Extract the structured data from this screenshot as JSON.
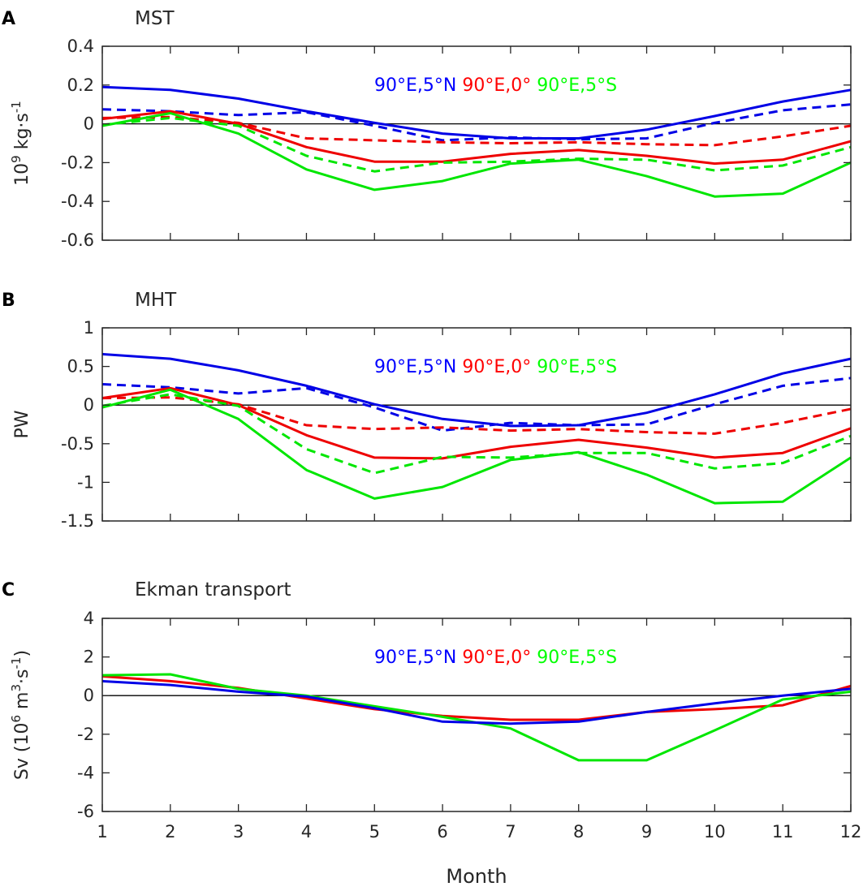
{
  "chart_data": [
    {
      "type": "line",
      "panel_label": "A",
      "title": "MST",
      "ylabel": {
        "base": "10",
        "exp": "9",
        "unit": " kg·s",
        "unit_exp": "-1"
      },
      "xlabel": "",
      "x": [
        1,
        2,
        3,
        4,
        5,
        6,
        7,
        8,
        9,
        10,
        11,
        12
      ],
      "xlim": [
        1,
        12
      ],
      "ylim": [
        -0.6,
        0.4
      ],
      "yticks": [
        -0.6,
        -0.4,
        -0.2,
        0,
        0.2,
        0.4
      ],
      "ytick_labels": [
        "-0.6",
        "-0.4",
        "-0.2",
        "0",
        "0.2",
        "0.4"
      ],
      "legend": [
        {
          "label": "90°E,5°N",
          "color": "#0000ff"
        },
        {
          "label": "90°E,0°",
          "color": "#ff0000"
        },
        {
          "label": "90°E,5°S",
          "color": "#00ff00"
        }
      ],
      "series": [
        {
          "name": "90°E,5°N",
          "style": "solid",
          "color": "#0000e6",
          "values": [
            0.19,
            0.175,
            0.13,
            0.065,
            0.005,
            -0.05,
            -0.075,
            -0.075,
            -0.03,
            0.04,
            0.115,
            0.175
          ]
        },
        {
          "name": "90°E,5°N",
          "style": "dashed",
          "color": "#0000e6",
          "values": [
            0.075,
            0.065,
            0.045,
            0.06,
            -0.01,
            -0.085,
            -0.07,
            -0.08,
            -0.075,
            0.005,
            0.07,
            0.1
          ]
        },
        {
          "name": "90°E,0°",
          "style": "solid",
          "color": "#ee0000",
          "values": [
            0.025,
            0.065,
            0.0,
            -0.12,
            -0.195,
            -0.195,
            -0.155,
            -0.135,
            -0.165,
            -0.205,
            -0.185,
            -0.09
          ]
        },
        {
          "name": "90°E,0°",
          "style": "dashed",
          "color": "#ee0000",
          "values": [
            0.03,
            0.035,
            0.005,
            -0.075,
            -0.085,
            -0.095,
            -0.1,
            -0.095,
            -0.105,
            -0.11,
            -0.065,
            -0.01
          ]
        },
        {
          "name": "90°E,5°S",
          "style": "solid",
          "color": "#00e600",
          "values": [
            -0.01,
            0.055,
            -0.05,
            -0.235,
            -0.34,
            -0.295,
            -0.205,
            -0.185,
            -0.27,
            -0.375,
            -0.36,
            -0.2
          ]
        },
        {
          "name": "90°E,5°S",
          "style": "dashed",
          "color": "#00e600",
          "values": [
            -0.005,
            0.03,
            -0.01,
            -0.165,
            -0.245,
            -0.2,
            -0.195,
            -0.18,
            -0.185,
            -0.24,
            -0.215,
            -0.12
          ]
        }
      ]
    },
    {
      "type": "line",
      "panel_label": "B",
      "title": "MHT",
      "ylabel": {
        "text": "PW"
      },
      "xlabel": "",
      "x": [
        1,
        2,
        3,
        4,
        5,
        6,
        7,
        8,
        9,
        10,
        11,
        12
      ],
      "xlim": [
        1,
        12
      ],
      "ylim": [
        -1.5,
        1
      ],
      "yticks": [
        -1.5,
        -1,
        -0.5,
        0,
        0.5,
        1
      ],
      "ytick_labels": [
        "-1.5",
        "-1",
        "-0.5",
        "0",
        "0.5",
        "1"
      ],
      "legend": [
        {
          "label": "90°E,5°N",
          "color": "#0000ff"
        },
        {
          "label": "90°E,0°",
          "color": "#ff0000"
        },
        {
          "label": "90°E,5°S",
          "color": "#00ff00"
        }
      ],
      "series": [
        {
          "name": "90°E,5°N",
          "style": "solid",
          "color": "#0000e6",
          "values": [
            0.66,
            0.6,
            0.45,
            0.25,
            0.01,
            -0.18,
            -0.27,
            -0.26,
            -0.1,
            0.14,
            0.41,
            0.6
          ]
        },
        {
          "name": "90°E,5°N",
          "style": "dashed",
          "color": "#0000e6",
          "values": [
            0.27,
            0.23,
            0.15,
            0.22,
            -0.03,
            -0.33,
            -0.23,
            -0.26,
            -0.25,
            0.01,
            0.25,
            0.35
          ]
        },
        {
          "name": "90°E,0°",
          "style": "solid",
          "color": "#ee0000",
          "values": [
            0.09,
            0.22,
            0.0,
            -0.39,
            -0.68,
            -0.69,
            -0.54,
            -0.45,
            -0.55,
            -0.68,
            -0.62,
            -0.3
          ]
        },
        {
          "name": "90°E,0°",
          "style": "dashed",
          "color": "#ee0000",
          "values": [
            0.09,
            0.1,
            0.01,
            -0.26,
            -0.31,
            -0.29,
            -0.33,
            -0.31,
            -0.35,
            -0.37,
            -0.23,
            -0.05
          ]
        },
        {
          "name": "90°E,5°S",
          "style": "solid",
          "color": "#00e600",
          "values": [
            -0.03,
            0.2,
            -0.18,
            -0.84,
            -1.21,
            -1.06,
            -0.71,
            -0.61,
            -0.9,
            -1.27,
            -1.25,
            -0.68
          ]
        },
        {
          "name": "90°E,5°S",
          "style": "dashed",
          "color": "#00e600",
          "values": [
            -0.01,
            0.14,
            -0.01,
            -0.57,
            -0.88,
            -0.67,
            -0.68,
            -0.62,
            -0.62,
            -0.82,
            -0.75,
            -0.4
          ]
        }
      ]
    },
    {
      "type": "line",
      "panel_label": "C",
      "title": "Ekman transport",
      "ylabel": {
        "pre": "Sv (10",
        "exp1": "6",
        "mid": " m",
        "exp2": "3",
        "unit": "·s",
        "exp3": "-1",
        "post": ")"
      },
      "xlabel": "Month",
      "x": [
        1,
        2,
        3,
        4,
        5,
        6,
        7,
        8,
        9,
        10,
        11,
        12
      ],
      "xlim": [
        1,
        12
      ],
      "ylim": [
        -6,
        4
      ],
      "yticks": [
        -6,
        -4,
        -2,
        0,
        2,
        4
      ],
      "ytick_labels": [
        "-6",
        "-4",
        "-2",
        "0",
        "2",
        "4"
      ],
      "xtick_labels": [
        "1",
        "2",
        "3",
        "4",
        "5",
        "6",
        "7",
        "8",
        "9",
        "10",
        "11",
        "12"
      ],
      "legend": [
        {
          "label": "90°E,5°N",
          "color": "#0000ff"
        },
        {
          "label": "90°E,0°",
          "color": "#ff0000"
        },
        {
          "label": "90°E,5°S",
          "color": "#00ff00"
        }
      ],
      "series": [
        {
          "name": "90°E,0°",
          "style": "solid",
          "color": "#ee0000",
          "values": [
            1.0,
            0.75,
            0.4,
            -0.15,
            -0.7,
            -1.05,
            -1.25,
            -1.25,
            -0.85,
            -0.7,
            -0.5,
            0.5
          ]
        },
        {
          "name": "90°E,5°S",
          "style": "solid",
          "color": "#00e600",
          "values": [
            1.05,
            1.1,
            0.35,
            0.0,
            -0.55,
            -1.1,
            -1.7,
            -3.35,
            -3.35,
            -1.8,
            -0.2,
            0.2
          ]
        },
        {
          "name": "90°E,5°N",
          "style": "solid",
          "color": "#0000e6",
          "values": [
            0.75,
            0.55,
            0.2,
            -0.05,
            -0.65,
            -1.35,
            -1.45,
            -1.35,
            -0.85,
            -0.4,
            0.0,
            0.35
          ]
        }
      ]
    }
  ]
}
